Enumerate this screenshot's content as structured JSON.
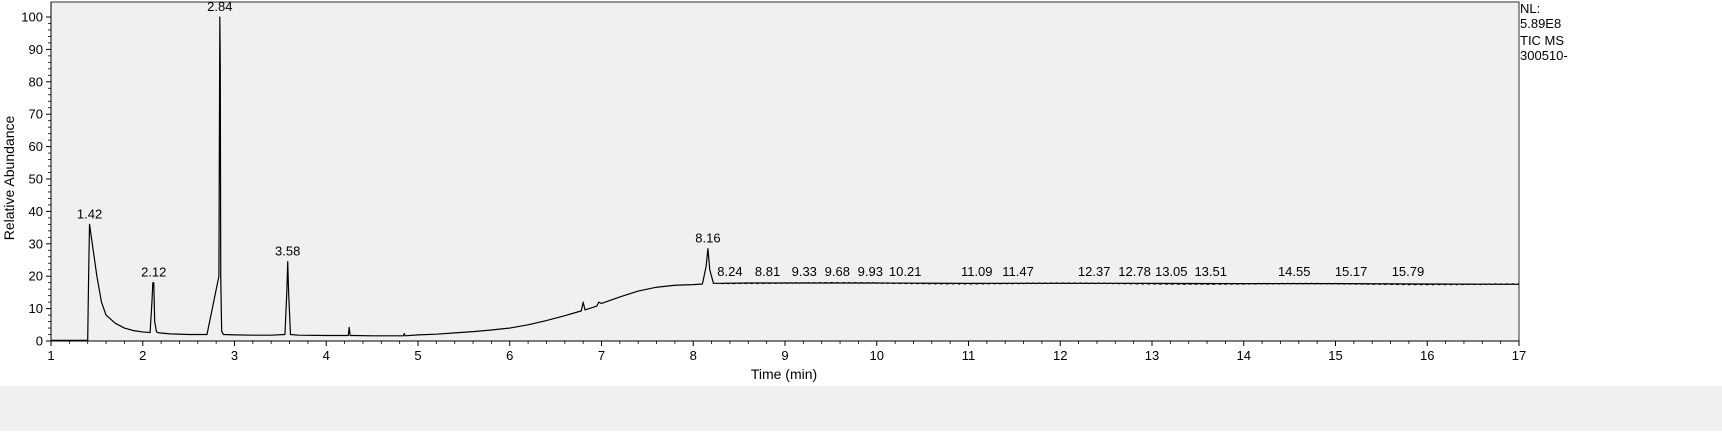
{
  "chart_data": {
    "type": "line",
    "xlabel": "Time (min)",
    "ylabel": "Relative Abundance",
    "xlim": [
      1,
      17
    ],
    "ylim": [
      0,
      100
    ],
    "x_ticks": [
      "1",
      "2",
      "3",
      "4",
      "5",
      "6",
      "7",
      "8",
      "9",
      "10",
      "11",
      "12",
      "13",
      "14",
      "15",
      "16",
      "17"
    ],
    "y_ticks": [
      "0",
      "10",
      "20",
      "30",
      "40",
      "50",
      "60",
      "70",
      "80",
      "90",
      "100"
    ],
    "grid": false,
    "colors": {
      "plot_bg": "#f0f0f0",
      "trace": "#000000",
      "frame": "#000000",
      "bottom_band": "#f0f0f0"
    },
    "info_lines": [
      "NL:",
      "5.89E8",
      "TIC  MS",
      "300510-"
    ],
    "series": [
      {
        "x": [
          1.0,
          1.4,
          1.41,
          1.42,
          1.45,
          1.5,
          1.55,
          1.6,
          1.7,
          1.8,
          1.9,
          2.0,
          2.08,
          2.1,
          2.11,
          2.12,
          2.13,
          2.15,
          2.18,
          2.3,
          2.5,
          2.7,
          2.83,
          2.84,
          2.845,
          2.85,
          2.86,
          2.88,
          3.0,
          3.2,
          3.4,
          3.55,
          3.57,
          3.58,
          3.59,
          3.61,
          3.7,
          4.0,
          4.24,
          4.25,
          4.26,
          4.3,
          4.5,
          4.84,
          4.85,
          4.86,
          5.0,
          5.2,
          5.4,
          5.6,
          5.8,
          6.0,
          6.2,
          6.4,
          6.6,
          6.78,
          6.8,
          6.82,
          6.95,
          6.97,
          7.0,
          7.2,
          7.4,
          7.6,
          7.8,
          8.0,
          8.1,
          8.14,
          8.16,
          8.18,
          8.22,
          8.3,
          8.6,
          9.0,
          10.0,
          11.0,
          12.0,
          13.0,
          14.0,
          15.0,
          16.0,
          17.0
        ],
        "y": [
          0.2,
          0.2,
          20,
          36,
          30,
          20,
          12,
          8,
          5.5,
          4,
          3.2,
          2.8,
          2.6,
          12,
          18,
          18,
          6,
          2.8,
          2.5,
          2.2,
          2.0,
          2.0,
          20,
          100,
          85,
          20,
          3,
          2.0,
          1.9,
          1.8,
          1.8,
          2.0,
          15,
          24.5,
          15,
          2.0,
          1.8,
          1.7,
          1.7,
          4.2,
          1.7,
          1.7,
          1.6,
          1.6,
          2.3,
          1.6,
          1.9,
          2.1,
          2.5,
          2.9,
          3.4,
          4.0,
          5.0,
          6.3,
          7.8,
          9.3,
          12,
          9.6,
          10.8,
          12,
          11.6,
          13.6,
          15.4,
          16.6,
          17.2,
          17.4,
          17.6,
          23,
          28.5,
          22,
          17.8,
          17.8,
          17.9,
          17.9,
          17.9,
          17.8,
          17.8,
          17.8,
          17.7,
          17.7,
          17.6,
          17.5
        ]
      }
    ],
    "annotations": [
      {
        "label": "1.42",
        "x": 1.42,
        "y": 36
      },
      {
        "label": "2.12",
        "x": 2.12,
        "y": 18
      },
      {
        "label": "2.84",
        "x": 2.84,
        "y": 100
      },
      {
        "label": "3.58",
        "x": 3.58,
        "y": 24.5
      },
      {
        "label": "8.16",
        "x": 8.16,
        "y": 28.5
      },
      {
        "label": "8.24",
        "x": 8.4,
        "y": 18.2
      },
      {
        "label": "8.81",
        "x": 8.81,
        "y": 18.2
      },
      {
        "label": "9.33",
        "x": 9.21,
        "y": 18.2
      },
      {
        "label": "9.68",
        "x": 9.57,
        "y": 18.2
      },
      {
        "label": "9.93",
        "x": 9.93,
        "y": 18.2
      },
      {
        "label": "10.21",
        "x": 10.31,
        "y": 18.2
      },
      {
        "label": "11.09",
        "x": 11.09,
        "y": 18.2
      },
      {
        "label": "11.47",
        "x": 11.54,
        "y": 18.2
      },
      {
        "label": "12.37",
        "x": 12.37,
        "y": 18.2
      },
      {
        "label": "12.78",
        "x": 12.81,
        "y": 18.2
      },
      {
        "label": "13.05",
        "x": 13.21,
        "y": 18.2
      },
      {
        "label": "13.51",
        "x": 13.64,
        "y": 18.2
      },
      {
        "label": "14.55",
        "x": 14.55,
        "y": 18.2
      },
      {
        "label": "15.17",
        "x": 15.17,
        "y": 18.2
      },
      {
        "label": "15.79",
        "x": 15.79,
        "y": 18.2
      }
    ]
  }
}
